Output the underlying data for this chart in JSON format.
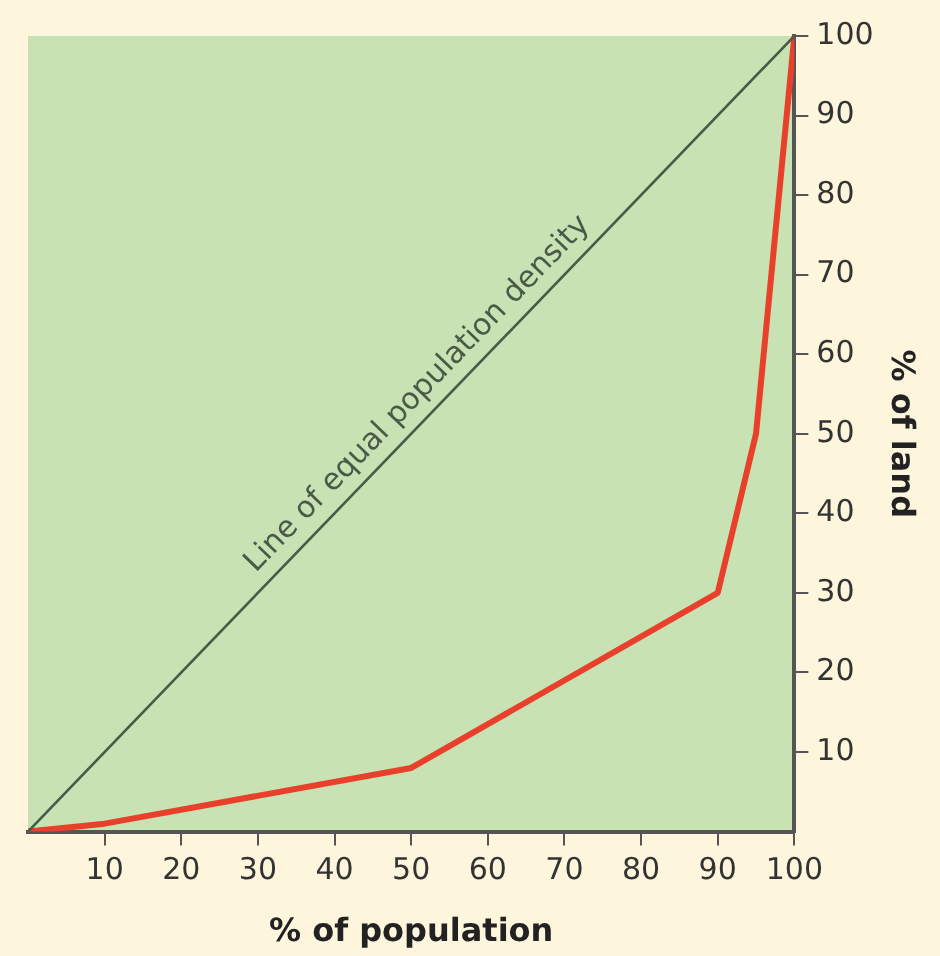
{
  "chart_data": {
    "type": "line",
    "xlabel": "% of population",
    "ylabel": "% of land",
    "xlim": [
      0,
      100
    ],
    "ylim": [
      0,
      100
    ],
    "xticks": [
      10,
      20,
      30,
      40,
      50,
      60,
      70,
      80,
      90,
      100
    ],
    "yticks": [
      10,
      20,
      30,
      40,
      50,
      60,
      70,
      80,
      90,
      100
    ],
    "grid": false,
    "legend": false,
    "marker": "none",
    "line_style": "solid",
    "series": [
      {
        "name": "Line of equal population density",
        "color": "#4a5a48",
        "x": [
          0,
          100
        ],
        "values": [
          0,
          100
        ]
      },
      {
        "color": "#e8402a",
        "x": [
          0,
          10,
          50,
          90,
          95,
          100
        ],
        "values": [
          0,
          1,
          8,
          30,
          50,
          100
        ]
      }
    ]
  }
}
